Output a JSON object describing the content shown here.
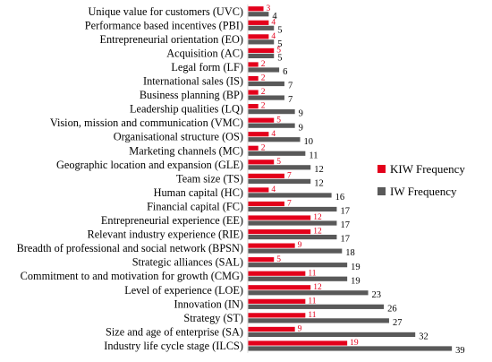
{
  "chart_data": {
    "type": "bar",
    "orientation": "horizontal",
    "categories": [
      "Unique value for customers (UVC)",
      "Performance based incentives (PBI)",
      "Entrepreneurial orientation (EO)",
      "Acquisition (AC)",
      "Legal form (LF)",
      "International sales (IS)",
      "Business planning (BP)",
      "Leadership qualities (LQ)",
      "Vision, mission and communication (VMC)",
      "Organisational structure (OS)",
      "Marketing channels (MC)",
      "Geographic location and expansion (GLE)",
      "Team size (TS)",
      "Human capital (HC)",
      "Financial capital (FC)",
      "Entrepreneurial experience (EE)",
      "Relevant industry experience (RIE)",
      "Breadth of professional and social network (BPSN)",
      "Strategic alliances (SAL)",
      "Commitment to and motivation for growth (CMG)",
      "Level of experience (LOE)",
      "Innovation (IN)",
      "Strategy (ST)",
      "Size and age of enterprise (SA)",
      "Industry life cycle stage (ILCS)"
    ],
    "series": [
      {
        "name": "KIW Frequency",
        "color": "#e3001b",
        "values": [
          3,
          4,
          4,
          5,
          2,
          2,
          2,
          2,
          5,
          4,
          2,
          5,
          7,
          4,
          7,
          12,
          12,
          9,
          5,
          11,
          12,
          11,
          11,
          9,
          19
        ]
      },
      {
        "name": "IW Frequency",
        "color": "#595959",
        "values": [
          4,
          5,
          5,
          5,
          6,
          7,
          7,
          9,
          9,
          10,
          11,
          12,
          12,
          16,
          17,
          17,
          17,
          18,
          19,
          19,
          23,
          26,
          27,
          32,
          39
        ]
      }
    ],
    "data_labels": true,
    "legend": {
      "position": "right",
      "entries": [
        "KIW Frequency",
        "IW Frequency"
      ]
    },
    "xlim": [
      0,
      39
    ],
    "grid": false,
    "title": "",
    "xlabel": "",
    "ylabel": ""
  }
}
